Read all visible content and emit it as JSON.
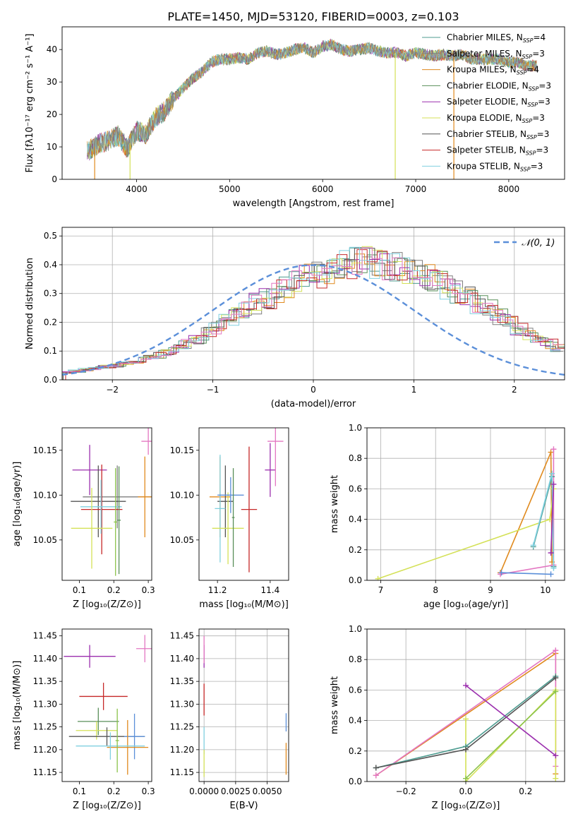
{
  "title": "PLATE=1450, MJD=53120, FIBERID=0003, z=0.103",
  "colors": {
    "chabrier_miles": "#4c9b8f",
    "salpeter_miles": "#7f7f7f",
    "kroupa_miles": "#e08a1e",
    "chabrier_elodie": "#5a8f5a",
    "salpeter_elodie": "#9b2fae",
    "kroupa_elodie": "#d4e157",
    "chabrier_stelib": "#555555",
    "salpeter_stelib": "#c62828",
    "kroupa_stelib": "#80d0e0",
    "pink": "#e377c2",
    "green": "#8bc34a",
    "normal": "#5b8fd9"
  },
  "chart_data": [
    {
      "id": "spectrum",
      "type": "line",
      "title": "PLATE=1450, MJD=53120, FIBERID=0003, z=0.103",
      "xlabel": "wavelength [Angstrom, rest frame]",
      "ylabel": "Flux [fλ10⁻¹⁷ erg cm⁻² s⁻¹ A⁻¹]",
      "xlim": [
        3200,
        8600
      ],
      "ylim": [
        0,
        47
      ],
      "xticks": [
        4000,
        5000,
        6000,
        7000,
        8000
      ],
      "yticks": [
        0,
        10,
        20,
        30,
        40
      ],
      "grid": false,
      "legend_position": "top-right",
      "x": [
        3470,
        3600,
        3700,
        3800,
        3900,
        4000,
        4100,
        4200,
        4300,
        4400,
        4500,
        4600,
        4700,
        4800,
        4900,
        5000,
        5100,
        5200,
        5300,
        5400,
        5500,
        5600,
        5700,
        5800,
        5900,
        6000,
        6100,
        6200,
        6300,
        6400,
        6500,
        6600,
        6700,
        6800,
        6900,
        7000,
        7100,
        7200,
        7300,
        7400,
        7500,
        7600,
        7700,
        7800,
        7900,
        8000,
        8100,
        8200,
        8300
      ],
      "y": [
        8.5,
        11,
        12,
        13.5,
        9.5,
        15,
        14,
        19,
        21,
        25,
        28,
        31,
        33,
        36,
        37,
        37,
        37.5,
        37,
        39,
        39.5,
        38.5,
        39,
        40,
        40.5,
        39,
        41,
        41.5,
        40,
        39.5,
        40,
        40.5,
        39.5,
        39,
        39,
        38,
        39,
        38.5,
        38,
        38.5,
        38,
        38.5,
        37,
        37,
        37,
        37,
        36,
        36,
        35,
        35
      ],
      "series": [
        {
          "name": "Chabrier MILES, Nₛₛₚ=4",
          "label_main": "Chabrier MILES, N",
          "label_sub": "SSP",
          "label_tail": "=4",
          "color": "#4c9b8f"
        },
        {
          "name": "Salpeter MILES, Nₛₛₚ=3",
          "label_main": "Salpeter MILES, N",
          "label_sub": "SSP",
          "label_tail": "=3",
          "color": "#7f7f7f"
        },
        {
          "name": "Kroupa MILES, Nₛₛₚ=4",
          "label_main": "Kroupa MILES, N",
          "label_sub": "SSP",
          "label_tail": "=4",
          "color": "#e08a1e"
        },
        {
          "name": "Chabrier ELODIE, Nₛₛₚ=3",
          "label_main": "Chabrier ELODIE, N",
          "label_sub": "SSP",
          "label_tail": "=3",
          "color": "#5a8f5a"
        },
        {
          "name": "Salpeter ELODIE, Nₛₛₚ=3",
          "label_main": "Salpeter ELODIE, N",
          "label_sub": "SSP",
          "label_tail": "=3",
          "color": "#9b2fae"
        },
        {
          "name": "Kroupa ELODIE, Nₛₛₚ=3",
          "label_main": "Kroupa ELODIE, N",
          "label_sub": "SSP",
          "label_tail": "=3",
          "color": "#d4e157"
        },
        {
          "name": "Chabrier STELIB, Nₛₛₚ=3",
          "label_main": "Chabrier STELIB, N",
          "label_sub": "SSP",
          "label_tail": "=3",
          "color": "#555555"
        },
        {
          "name": "Salpeter STELIB, Nₛₛₚ=3",
          "label_main": "Salpeter STELIB, N",
          "label_sub": "SSP",
          "label_tail": "=3",
          "color": "#c62828"
        },
        {
          "name": "Kroupa STELIB, Nₛₛₚ=3",
          "label_main": "Kroupa STELIB, N",
          "label_sub": "SSP",
          "label_tail": "=3",
          "color": "#80d0e0"
        }
      ],
      "dropouts": [
        {
          "x": 3550,
          "color": "#e08a1e"
        },
        {
          "x": 3930,
          "color": "#d4e157"
        },
        {
          "x": 6780,
          "color": "#d4e157"
        },
        {
          "x": 7410,
          "color": "#e08a1e"
        }
      ]
    },
    {
      "id": "residuals",
      "type": "histogram",
      "xlabel": "(data-model)/error",
      "ylabel": "Normed distribution",
      "xlim": [
        -2.5,
        2.5
      ],
      "ylim": [
        0,
        0.53
      ],
      "xticks": [
        -2,
        -1,
        0,
        1,
        2
      ],
      "yticks": [
        0.0,
        0.1,
        0.2,
        0.3,
        0.4,
        0.5
      ],
      "grid": true,
      "legend_position": "top-right",
      "legend": "𝒩(0, 1)",
      "bin_width": 0.1,
      "bin_start": -2.5,
      "base_values": [
        0.025,
        0.03,
        0.035,
        0.04,
        0.045,
        0.05,
        0.06,
        0.065,
        0.075,
        0.085,
        0.095,
        0.11,
        0.125,
        0.14,
        0.16,
        0.18,
        0.2,
        0.22,
        0.245,
        0.265,
        0.285,
        0.305,
        0.32,
        0.34,
        0.355,
        0.37,
        0.38,
        0.39,
        0.4,
        0.405,
        0.41,
        0.405,
        0.4,
        0.39,
        0.38,
        0.37,
        0.355,
        0.34,
        0.32,
        0.305,
        0.285,
        0.265,
        0.245,
        0.22,
        0.2,
        0.18,
        0.16,
        0.14,
        0.125,
        0.11
      ],
      "normal_curve": {
        "mean": 0,
        "sigma": 1
      }
    },
    {
      "id": "age-vs-Z",
      "type": "errorbar",
      "xlabel": "Z [log₁₀(Z/Z⊙)]",
      "ylabel": "age  [log₁₀(age/yr)]",
      "xlim": [
        0.05,
        0.31
      ],
      "ylim": [
        10.005,
        10.175
      ],
      "xticks": [
        0.1,
        0.2,
        0.3
      ],
      "yticks": [
        10.05,
        10.1,
        10.15
      ],
      "points": [
        {
          "x": 0.13,
          "y": 10.128,
          "xerr": 0.05,
          "yerr": 0.028,
          "color": "#9b2fae"
        },
        {
          "x": 0.3,
          "y": 10.16,
          "xerr": 0.02,
          "yerr": 0.015,
          "color": "#e377c2"
        },
        {
          "x": 0.21,
          "y": 10.098,
          "xerr": 0.1,
          "yerr": 0.035,
          "color": "#7f7f7f"
        },
        {
          "x": 0.155,
          "y": 10.093,
          "xerr": 0.08,
          "yerr": 0.04,
          "color": "#555555"
        },
        {
          "x": 0.165,
          "y": 10.084,
          "xerr": 0.06,
          "yerr": 0.05,
          "color": "#c62828"
        },
        {
          "x": 0.163,
          "y": 10.087,
          "xerr": 0.06,
          "yerr": 0.03,
          "color": "#80d0e0"
        },
        {
          "x": 0.136,
          "y": 10.063,
          "xerr": 0.06,
          "yerr": 0.045,
          "color": "#d4e157"
        },
        {
          "x": 0.29,
          "y": 10.098,
          "xerr": 0.02,
          "yerr": 0.045,
          "color": "#e08a1e"
        },
        {
          "x": 0.205,
          "y": 10.07,
          "xerr": 0.005,
          "yerr": 0.06,
          "color": "#8bc34a"
        },
        {
          "x": 0.215,
          "y": 10.072,
          "xerr": 0.005,
          "yerr": 0.06,
          "color": "#5a8f5a"
        }
      ]
    },
    {
      "id": "age-vs-mass",
      "type": "errorbar",
      "xlabel": "mass [log₁₀(M/M⊙)]",
      "ylabel": "",
      "xlim": [
        11.13,
        11.47
      ],
      "ylim": [
        10.005,
        10.175
      ],
      "xticks": [
        11.2,
        11.4
      ],
      "yticks": [
        10.05,
        10.1,
        10.15
      ],
      "points": [
        {
          "x": 11.4,
          "y": 10.128,
          "xerr": 0.02,
          "yerr": 0.03,
          "color": "#9b2fae"
        },
        {
          "x": 11.42,
          "y": 10.16,
          "xerr": 0.03,
          "yerr": 0.05,
          "color": "#e377c2"
        },
        {
          "x": 11.21,
          "y": 10.098,
          "xerr": 0.04,
          "yerr": 0.045,
          "color": "#e08a1e"
        },
        {
          "x": 11.23,
          "y": 10.093,
          "xerr": 0.03,
          "yerr": 0.04,
          "color": "#555555"
        },
        {
          "x": 11.32,
          "y": 10.084,
          "xerr": 0.03,
          "yerr": 0.07,
          "color": "#c62828"
        },
        {
          "x": 11.21,
          "y": 10.085,
          "xerr": 0.02,
          "yerr": 0.06,
          "color": "#80d0e0"
        },
        {
          "x": 11.24,
          "y": 10.063,
          "xerr": 0.06,
          "yerr": 0.04,
          "color": "#d4e157"
        },
        {
          "x": 11.25,
          "y": 10.1,
          "xerr": 0.05,
          "yerr": 0.02,
          "color": "#5b8fd9"
        },
        {
          "x": 11.26,
          "y": 10.075,
          "xerr": 0.005,
          "yerr": 0.055,
          "color": "#5a8f5a"
        }
      ]
    },
    {
      "id": "weight-vs-age",
      "type": "line",
      "xlabel": "age  [log₁₀(age/yr)]",
      "ylabel": "mass weight",
      "xlim": [
        6.75,
        10.35
      ],
      "ylim": [
        0,
        1
      ],
      "xticks": [
        7,
        8,
        9,
        10
      ],
      "yticks": [
        0.0,
        0.2,
        0.4,
        0.6,
        0.8,
        1.0
      ],
      "grid": true,
      "series": [
        {
          "color": "#e08a1e",
          "x": [
            9.18,
            10.1,
            10.12
          ],
          "y": [
            0.05,
            0.84,
            0.12
          ]
        },
        {
          "color": "#e377c2",
          "x": [
            9.18,
            10.15,
            10.15
          ],
          "y": [
            0.04,
            0.1,
            0.86
          ]
        },
        {
          "color": "#d4e157",
          "x": [
            6.95,
            10.08,
            10.15
          ],
          "y": [
            0.01,
            0.4,
            0.6
          ]
        },
        {
          "color": "#4c9b8f",
          "x": [
            9.78,
            10.12,
            10.15
          ],
          "y": [
            0.22,
            0.68,
            0.09
          ]
        },
        {
          "color": "#80d0e0",
          "x": [
            9.78,
            10.12,
            10.15
          ],
          "y": [
            0.23,
            0.7,
            0.08
          ]
        },
        {
          "color": "#9b2fae",
          "x": [
            10.1,
            10.15
          ],
          "y": [
            0.18,
            0.63
          ]
        },
        {
          "color": "#5b8fd9",
          "x": [
            9.2,
            10.1
          ],
          "y": [
            0.05,
            0.04
          ]
        }
      ]
    },
    {
      "id": "mass-vs-Z",
      "type": "errorbar",
      "xlabel": "Z [log₁₀(Z/Z⊙)]",
      "ylabel": "mass [log₁₀(M/M⊙)]",
      "xlim": [
        0.05,
        0.31
      ],
      "ylim": [
        11.13,
        11.465
      ],
      "xticks": [
        0.1,
        0.2,
        0.3
      ],
      "yticks": [
        11.15,
        11.2,
        11.25,
        11.3,
        11.35,
        11.4,
        11.45
      ],
      "points": [
        {
          "x": 0.13,
          "y": 11.405,
          "xerr": 0.075,
          "yerr": 0.025,
          "color": "#9b2fae"
        },
        {
          "x": 0.29,
          "y": 11.422,
          "xerr": 0.025,
          "yerr": 0.03,
          "color": "#e377c2"
        },
        {
          "x": 0.17,
          "y": 11.317,
          "xerr": 0.07,
          "yerr": 0.03,
          "color": "#c62828"
        },
        {
          "x": 0.155,
          "y": 11.262,
          "xerr": 0.06,
          "yerr": 0.03,
          "color": "#5a8f5a"
        },
        {
          "x": 0.15,
          "y": 11.242,
          "xerr": 0.06,
          "yerr": 0.02,
          "color": "#d4e157"
        },
        {
          "x": 0.18,
          "y": 11.229,
          "xerr": 0.11,
          "yerr": 0.02,
          "color": "#555555"
        },
        {
          "x": 0.26,
          "y": 11.229,
          "xerr": 0.03,
          "yerr": 0.05,
          "color": "#5b8fd9"
        },
        {
          "x": 0.24,
          "y": 11.205,
          "xerr": 0.06,
          "yerr": 0.06,
          "color": "#e08a1e"
        },
        {
          "x": 0.19,
          "y": 11.208,
          "xerr": 0.1,
          "yerr": 0.03,
          "color": "#80d0e0"
        },
        {
          "x": 0.21,
          "y": 11.22,
          "xerr": 0.005,
          "yerr": 0.07,
          "color": "#8bc34a"
        }
      ]
    },
    {
      "id": "mass-vs-ebv",
      "type": "errorbar",
      "xlabel": "E(B-V)",
      "ylabel": "",
      "xlim": [
        -0.0004,
        0.0067
      ],
      "ylim": [
        11.13,
        11.465
      ],
      "xticks": [
        0.0,
        0.0025,
        0.005
      ],
      "xtick_labels": [
        "0.0000",
        "0.0025",
        "0.0050"
      ],
      "yticks": [
        11.15,
        11.2,
        11.25,
        11.3,
        11.35,
        11.4,
        11.45
      ],
      "grid": true,
      "points": [
        {
          "x": 0.0,
          "y": 11.405,
          "xerr": 0,
          "yerr": 0.025,
          "color": "#9b2fae"
        },
        {
          "x": 0.0,
          "y": 11.42,
          "xerr": 0,
          "yerr": 0.03,
          "color": "#e377c2"
        },
        {
          "x": 0.0,
          "y": 11.31,
          "xerr": 0,
          "yerr": 0.035,
          "color": "#c62828"
        },
        {
          "x": 0.0,
          "y": 11.22,
          "xerr": 0,
          "yerr": 0.03,
          "color": "#80d0e0"
        },
        {
          "x": 0.0,
          "y": 11.17,
          "xerr": 0,
          "yerr": 0.03,
          "color": "#d4e157"
        },
        {
          "x": 0.0065,
          "y": 11.26,
          "xerr": 0,
          "yerr": 0.02,
          "color": "#5b8fd9"
        },
        {
          "x": 0.0065,
          "y": 11.18,
          "xerr": 0,
          "yerr": 0.035,
          "color": "#e08a1e"
        }
      ]
    },
    {
      "id": "weight-vs-Z",
      "type": "line",
      "xlabel": "Z [log₁₀(Z/Z⊙)]",
      "ylabel": "mass weight",
      "xlim": [
        -0.33,
        0.33
      ],
      "ylim": [
        0,
        1
      ],
      "xticks": [
        -0.2,
        0.0,
        0.2
      ],
      "yticks": [
        0.0,
        0.2,
        0.4,
        0.6,
        0.8,
        1.0
      ],
      "grid": true,
      "series": [
        {
          "color": "#e08a1e",
          "x": [
            -0.3,
            0.3,
            0.3
          ],
          "y": [
            0.04,
            0.84,
            0.05
          ]
        },
        {
          "color": "#e377c2",
          "x": [
            -0.3,
            0.3,
            0.3
          ],
          "y": [
            0.04,
            0.86,
            0.1
          ]
        },
        {
          "color": "#d4e157",
          "x": [
            0.0,
            0.0,
            0.3,
            0.3
          ],
          "y": [
            0.41,
            0.0,
            0.6,
            0.02
          ]
        },
        {
          "color": "#8bc34a",
          "x": [
            0.0,
            0.3
          ],
          "y": [
            0.02,
            0.59
          ]
        },
        {
          "color": "#4c9b8f",
          "x": [
            -0.3,
            0.0,
            0.3
          ],
          "y": [
            0.09,
            0.23,
            0.69
          ]
        },
        {
          "color": "#555555",
          "x": [
            -0.3,
            0.0,
            0.3
          ],
          "y": [
            0.09,
            0.21,
            0.68
          ]
        },
        {
          "color": "#9b2fae",
          "x": [
            0.0,
            0.3
          ],
          "y": [
            0.63,
            0.17
          ]
        }
      ]
    }
  ]
}
